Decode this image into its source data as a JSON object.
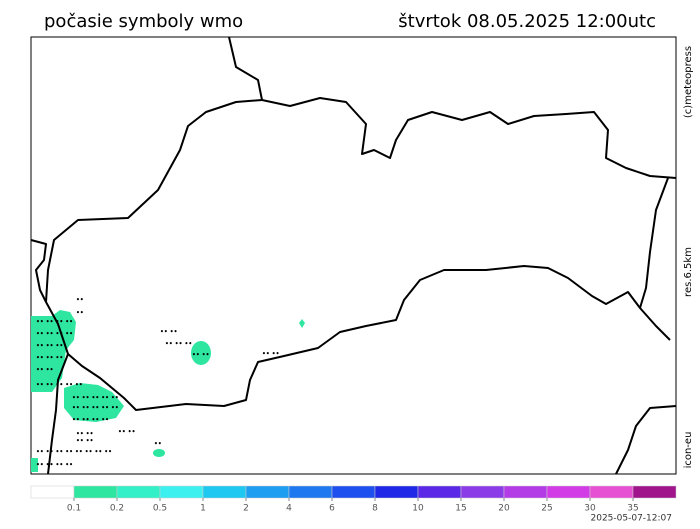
{
  "header": {
    "title": "počasie symboly wmo",
    "datetime": "štvrtok 08.05.2025 12:00utc"
  },
  "side_labels": {
    "copyright": "(c)meteopress",
    "resolution": "res.6.5km",
    "model": "icon-eu"
  },
  "legend": {
    "colors": [
      "#ffffff",
      "#2ee6a0",
      "#33f0c8",
      "#3cf0f0",
      "#1ec8f0",
      "#1e9ef0",
      "#1e78f0",
      "#1e50f0",
      "#1e28e6",
      "#5a28e6",
      "#8c3ce6",
      "#b43ce6",
      "#d23ce6",
      "#e650d2",
      "#a0148c"
    ],
    "ticks": [
      0.1,
      0.2,
      0.5,
      1,
      2,
      4,
      6,
      8,
      10,
      15,
      20,
      25,
      30,
      35
    ]
  },
  "footer": {
    "timestamp": "2025-05-07-12:07"
  }
}
